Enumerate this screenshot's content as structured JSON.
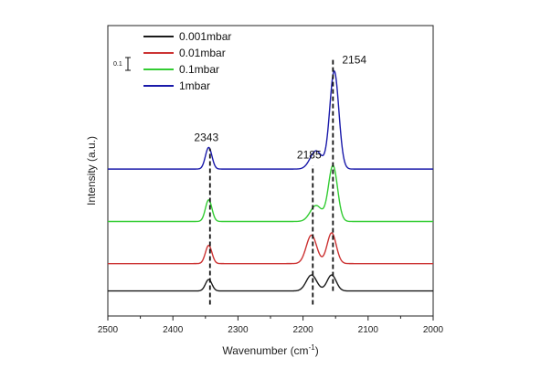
{
  "chart_data": {
    "type": "line",
    "title": "",
    "xlabel": "Wavenumber (cm",
    "xlabel_superscript": "-1",
    "xlabel_close": ")",
    "ylabel": "Intensity (a.u.)",
    "xlim": [
      2500,
      2000
    ],
    "x_reversed": true,
    "xticks": [
      2500,
      2400,
      2300,
      2200,
      2100,
      2000
    ],
    "yticks_shown": false,
    "grid": false,
    "legend_position": "top-left",
    "scale_bar_label": "0.1",
    "series": [
      {
        "name": "0.001mbar",
        "color": "#1a1a1a",
        "baseline": 0.12,
        "peaks": [
          {
            "center": 2345,
            "height": 0.1,
            "width": 5
          },
          {
            "center": 2187,
            "height": 0.14,
            "width": 8
          },
          {
            "center": 2156,
            "height": 0.14,
            "width": 7
          }
        ]
      },
      {
        "name": "0.01mbar",
        "color": "#cc3333",
        "baseline": 0.36,
        "peaks": [
          {
            "center": 2345,
            "height": 0.16,
            "width": 5
          },
          {
            "center": 2187,
            "height": 0.25,
            "width": 8
          },
          {
            "center": 2156,
            "height": 0.27,
            "width": 7
          }
        ]
      },
      {
        "name": "0.1mbar",
        "color": "#33cc33",
        "baseline": 0.73,
        "peaks": [
          {
            "center": 2345,
            "height": 0.19,
            "width": 5
          },
          {
            "center": 2180,
            "height": 0.14,
            "width": 9
          },
          {
            "center": 2154,
            "height": 0.49,
            "width": 7
          }
        ]
      },
      {
        "name": "1mbar",
        "color": "#1a1aaa",
        "baseline": 1.19,
        "peaks": [
          {
            "center": 2345,
            "height": 0.19,
            "width": 5
          },
          {
            "center": 2180,
            "height": 0.16,
            "width": 9
          },
          {
            "center": 2152,
            "height": 0.86,
            "width": 7
          }
        ]
      }
    ],
    "annotations": [
      {
        "label": "2343",
        "x": 2343,
        "line_from_y": 0.0,
        "line_to_y": 1.37
      },
      {
        "label": "2185",
        "x": 2185,
        "line_from_y": 0.0,
        "line_to_y": 1.22
      },
      {
        "label": "2154",
        "x": 2154,
        "line_from_y": 0.12,
        "line_to_y": 2.15
      }
    ],
    "ylim": [
      -0.1,
      2.45
    ]
  }
}
